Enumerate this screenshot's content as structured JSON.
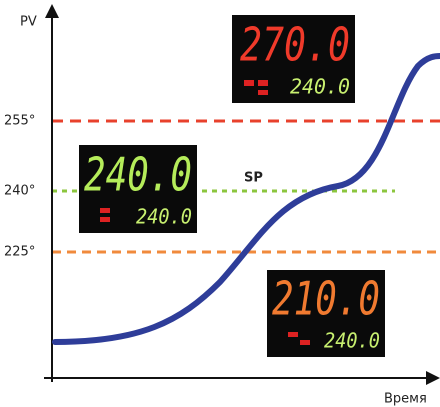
{
  "axes": {
    "y_label": "PV",
    "x_label": "Время"
  },
  "levels": [
    {
      "label": "255°"
    },
    {
      "label": "240°"
    },
    {
      "label": "225°"
    }
  ],
  "sp_label": "SP",
  "displays": [
    {
      "pv": "270.0",
      "sp": "240.0"
    },
    {
      "pv": "240.0",
      "sp": "240.0"
    },
    {
      "pv": "210.0",
      "sp": "240.0"
    }
  ]
}
